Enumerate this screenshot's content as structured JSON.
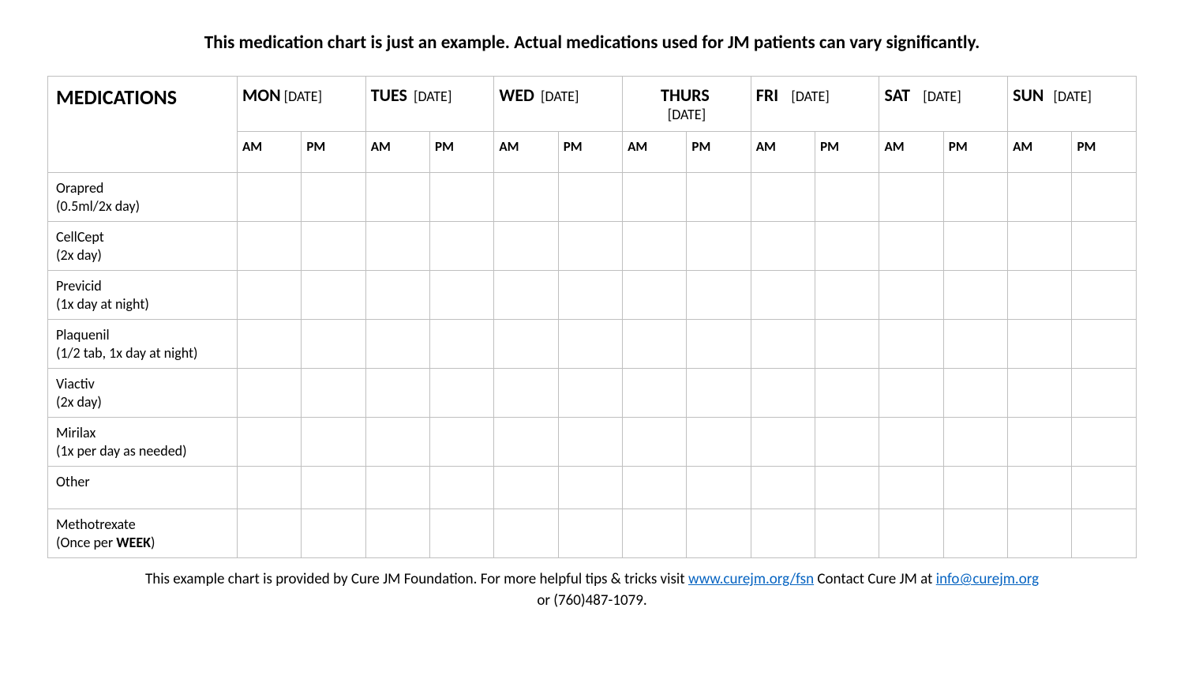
{
  "title": "This medication chart is just an example.  Actual medications used for JM patients can vary significantly.",
  "table": {
    "header_label": "MEDICATIONS",
    "date_placeholder": "[DATE]",
    "am_label": "AM",
    "pm_label": "PM",
    "days": [
      {
        "name": "MON",
        "date": "[DATE]"
      },
      {
        "name": "TUES",
        "date": "[DATE]"
      },
      {
        "name": "WED",
        "date": "[DATE]"
      },
      {
        "name": "THURS",
        "date": "[DATE]"
      },
      {
        "name": "FRI",
        "date": "[DATE]"
      },
      {
        "name": "SAT",
        "date": "[DATE]"
      },
      {
        "name": "SUN",
        "date": "[DATE]"
      }
    ],
    "medications": [
      {
        "name": "Orapred",
        "dose": "(0.5ml/2x day)"
      },
      {
        "name": "CellCept",
        "dose": "(2x day)"
      },
      {
        "name": "Previcid",
        "dose": "(1x day at night)"
      },
      {
        "name": "Plaquenil",
        "dose": "(1/2 tab, 1x day at night)"
      },
      {
        "name": "Viactiv",
        "dose": "(2x day)"
      },
      {
        "name": "Mirilax",
        "dose": "(1x per day as needed)"
      },
      {
        "name": "Other",
        "dose": ""
      },
      {
        "name": "Methotrexate",
        "dose_prefix": "(Once per ",
        "dose_bold": "WEEK",
        "dose_suffix": ")"
      }
    ],
    "border_color": "#bfbfbf",
    "background_color": "#ffffff",
    "text_color": "#000000"
  },
  "footer": {
    "line1_prefix": "This example chart is provided by Cure JM Foundation.  For more helpful tips & tricks visit ",
    "link1_text": "www.curejm.org/fsn",
    "line1_mid": " Contact Cure JM at ",
    "link2_text": "info@curejm.org",
    "line2": "or (760)487-1079.",
    "link_color": "#0563c1"
  }
}
